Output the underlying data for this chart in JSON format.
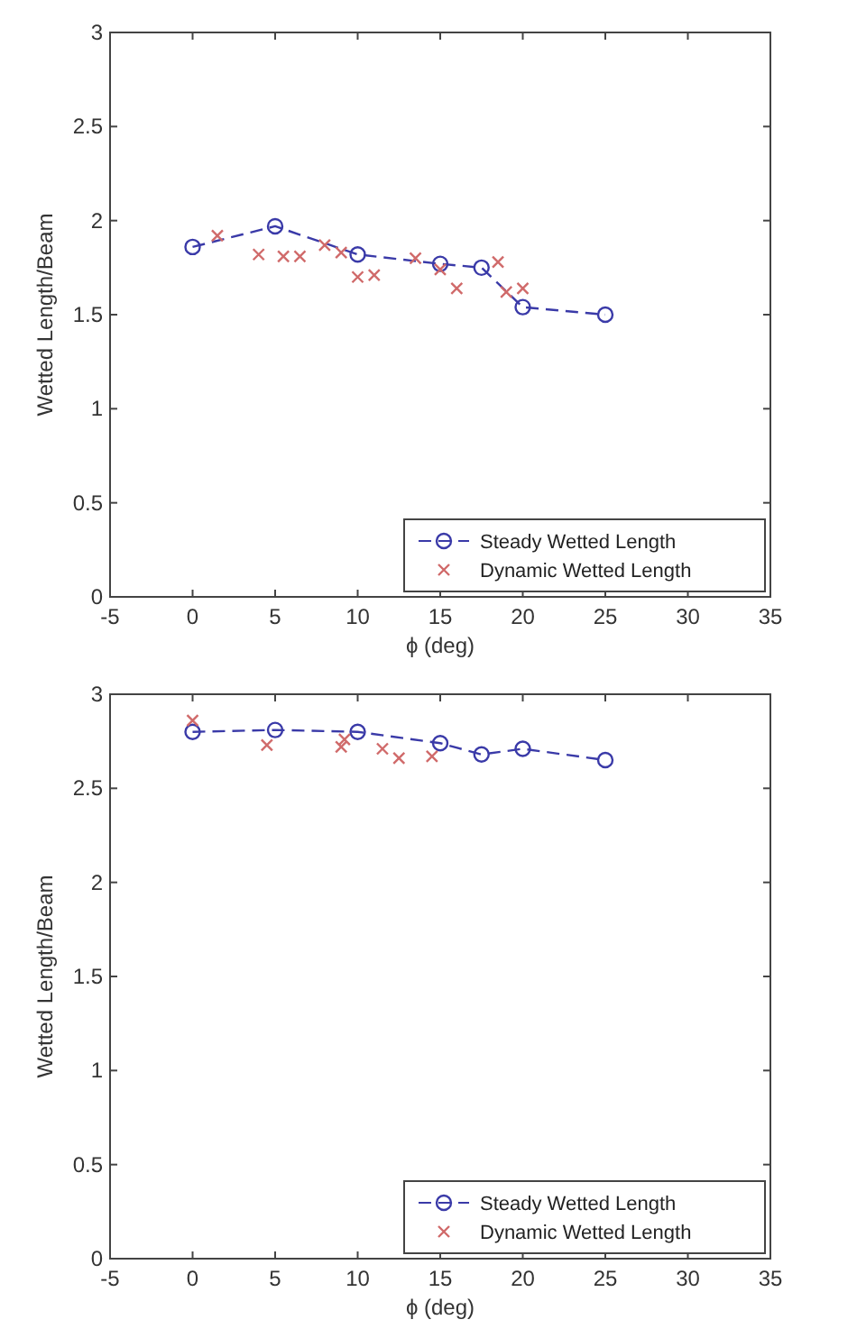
{
  "chart_data": [
    {
      "type": "line",
      "xlabel": "ϕ (deg)",
      "ylabel": "Wetted Length/Beam",
      "xlim": [
        -5,
        35
      ],
      "xticks": [
        -5,
        0,
        5,
        10,
        15,
        20,
        25,
        30,
        35
      ],
      "ylim": [
        0,
        3
      ],
      "yticks": [
        0,
        0.5,
        1,
        1.5,
        2,
        2.5,
        3
      ],
      "legend": "bottom right",
      "series": [
        {
          "name": "Steady Wetted Length",
          "color": "#3a3aa8",
          "marker": "circle",
          "line_style": "dashed",
          "x": [
            0,
            5,
            10,
            15,
            17.5,
            20,
            25
          ],
          "values": [
            1.86,
            1.97,
            1.82,
            1.77,
            1.75,
            1.54,
            1.5
          ]
        },
        {
          "name": "Dynamic Wetted Length",
          "type": "scatter",
          "color": "#d06a6a",
          "marker": "cross",
          "x": [
            1.5,
            4,
            5.5,
            6.5,
            8,
            9,
            10,
            11,
            13.5,
            15,
            16,
            18.5,
            19,
            20
          ],
          "values": [
            1.92,
            1.82,
            1.81,
            1.81,
            1.87,
            1.83,
            1.7,
            1.71,
            1.8,
            1.74,
            1.64,
            1.78,
            1.62,
            1.64
          ]
        }
      ]
    },
    {
      "type": "line",
      "xlabel": "ϕ (deg)",
      "ylabel": "Wetted Length/Beam",
      "xlim": [
        -5,
        35
      ],
      "xticks": [
        -5,
        0,
        5,
        10,
        15,
        20,
        25,
        30,
        35
      ],
      "ylim": [
        0,
        3
      ],
      "yticks": [
        0,
        0.5,
        1,
        1.5,
        2,
        2.5,
        3
      ],
      "legend": "bottom right",
      "series": [
        {
          "name": "Steady Wetted Length",
          "color": "#3a3aa8",
          "marker": "circle",
          "line_style": "dashed",
          "x": [
            0,
            5,
            10,
            15,
            17.5,
            20,
            25
          ],
          "values": [
            2.8,
            2.81,
            2.8,
            2.74,
            2.68,
            2.71,
            2.65
          ]
        },
        {
          "name": "Dynamic Wetted Length",
          "type": "scatter",
          "color": "#d06a6a",
          "marker": "cross",
          "x": [
            0,
            4.5,
            9,
            9.2,
            11.5,
            12.5,
            14.5
          ],
          "values": [
            2.86,
            2.73,
            2.72,
            2.76,
            2.71,
            2.66,
            2.67
          ]
        }
      ]
    }
  ]
}
